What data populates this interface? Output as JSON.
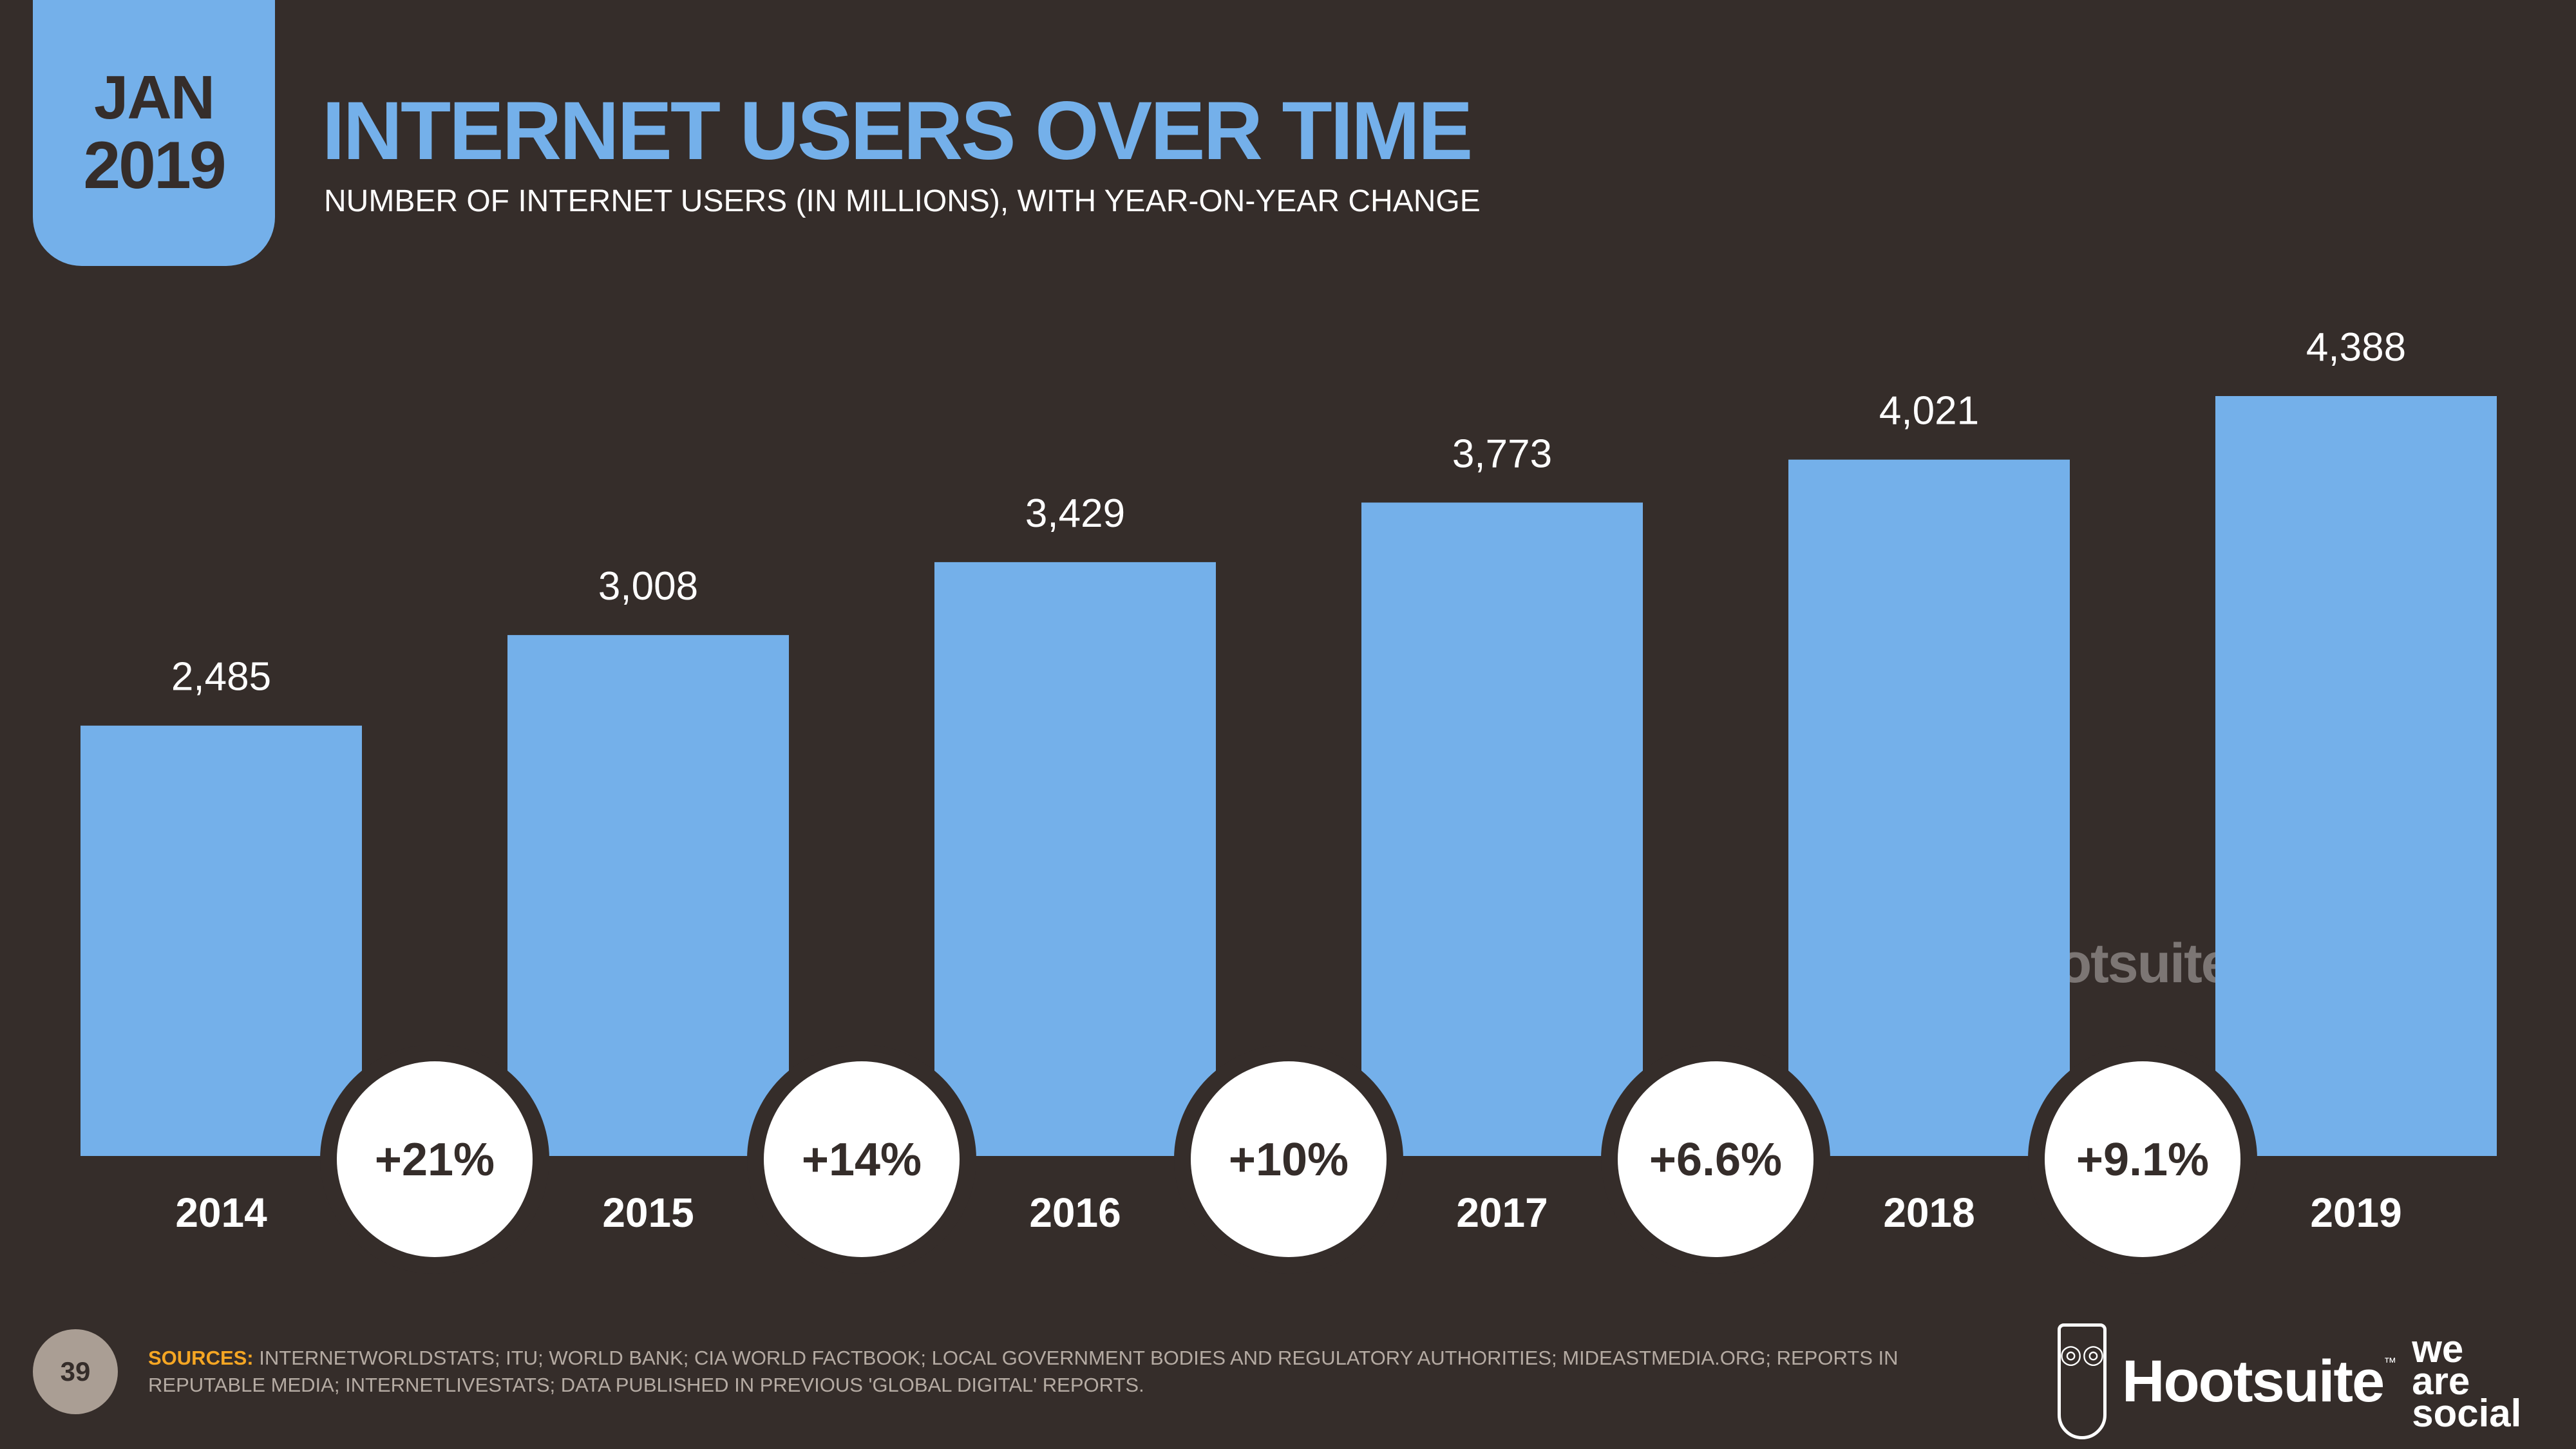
{
  "header": {
    "month": "JAN",
    "year": "2019",
    "title": "INTERNET USERS OVER TIME",
    "subtitle": "NUMBER OF INTERNET USERS (IN MILLIONS), WITH YEAR-ON-YEAR CHANGE"
  },
  "chart_data": {
    "type": "bar",
    "categories": [
      "2014",
      "2015",
      "2016",
      "2017",
      "2018",
      "2019"
    ],
    "values": [
      2485,
      3008,
      3429,
      3773,
      4021,
      4388
    ],
    "value_labels": [
      "2,485",
      "3,008",
      "3,429",
      "3,773",
      "4,021",
      "4,388"
    ],
    "yoy_change": [
      "+21%",
      "+14%",
      "+10%",
      "+6.6%",
      "+9.1%"
    ],
    "title": "INTERNET USERS OVER TIME",
    "subtitle": "NUMBER OF INTERNET USERS (IN MILLIONS), WITH YEAR-ON-YEAR CHANGE",
    "grid": false,
    "colors": {
      "bar": "#74b0ea",
      "background": "#352d2a",
      "change_circle": "#ffffff"
    }
  },
  "footer": {
    "page_number": "39",
    "sources_label": "SOURCES:",
    "sources_text": "INTERNETWORLDSTATS; ITU; WORLD BANK; CIA WORLD FACTBOOK; LOCAL GOVERNMENT BODIES AND REGULATORY AUTHORITIES; MIDEASTMEDIA.ORG; REPORTS IN REPUTABLE MEDIA; INTERNETLIVESTATS; DATA PUBLISHED IN PREVIOUS 'GLOBAL DIGITAL' REPORTS.",
    "logo_hootsuite": "Hootsuite",
    "logo_tm": "™",
    "logo_we_are_social": [
      "we",
      "are",
      "social"
    ]
  },
  "colors": {
    "accent": "#74b0ea",
    "sources_label": "#f5a623"
  }
}
